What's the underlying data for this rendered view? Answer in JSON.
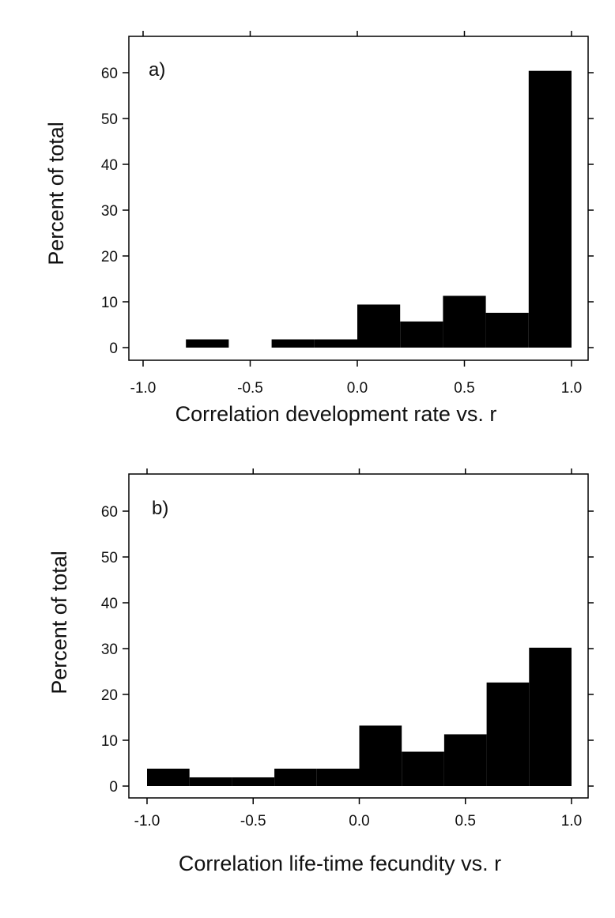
{
  "chart_data": [
    {
      "type": "bar",
      "panel_label": "a)",
      "title": "",
      "xlabel": "Correlation development rate vs. r",
      "ylabel": "Percent of total",
      "bin_edges": [
        -1.0,
        -0.8,
        -0.6,
        -0.4,
        -0.2,
        0.0,
        0.2,
        0.4,
        0.6,
        0.8,
        1.0
      ],
      "values": [
        0,
        1.8,
        0,
        1.8,
        1.8,
        9.4,
        5.7,
        11.3,
        7.6,
        60.4
      ],
      "xlim": [
        -1.0,
        1.0
      ],
      "ylim": [
        0,
        65
      ],
      "xticks": [
        "-1.0",
        "-0.5",
        "0.0",
        "0.5",
        "1.0"
      ],
      "yticks": [
        "0",
        "10",
        "20",
        "30",
        "40",
        "50",
        "60"
      ],
      "bar_color": "#000000",
      "grid": false
    },
    {
      "type": "bar",
      "panel_label": "b)",
      "title": "",
      "xlabel": "Correlation life-time fecundity vs. r",
      "ylabel": "Percent of total",
      "bin_edges": [
        -1.0,
        -0.8,
        -0.6,
        -0.4,
        -0.2,
        0.0,
        0.2,
        0.4,
        0.6,
        0.8,
        1.0
      ],
      "values": [
        3.8,
        1.9,
        1.9,
        3.8,
        3.8,
        13.2,
        7.5,
        11.3,
        22.6,
        30.2
      ],
      "xlim": [
        -1.0,
        1.0
      ],
      "ylim": [
        0,
        65
      ],
      "xticks": [
        "-1.0",
        "-0.5",
        "0.0",
        "0.5",
        "1.0"
      ],
      "yticks": [
        "0",
        "10",
        "20",
        "30",
        "40",
        "50",
        "60"
      ],
      "bar_color": "#000000",
      "grid": false
    }
  ]
}
